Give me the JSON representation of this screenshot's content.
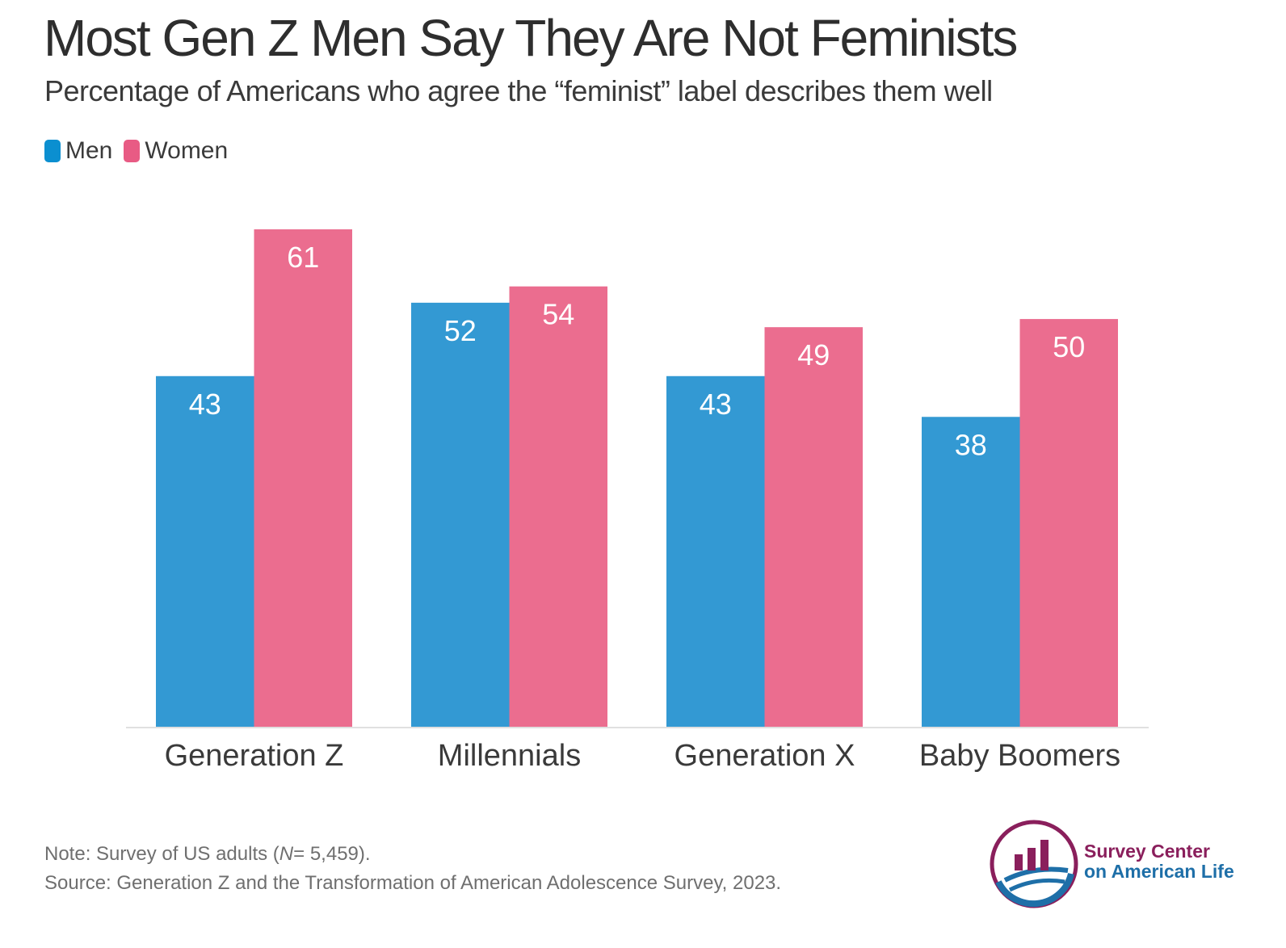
{
  "chart_data": {
    "type": "bar",
    "title": "Most Gen Z Men Say They Are Not Feminists",
    "subtitle": "Percentage of Americans who agree the “feminist” label describes them well",
    "categories": [
      "Generation Z",
      "Millennials",
      "Generation X",
      "Baby Boomers"
    ],
    "series": [
      {
        "name": "Men",
        "color": "#3399d3",
        "values": [
          43,
          52,
          43,
          38
        ]
      },
      {
        "name": "Women",
        "color": "#eb6d8f",
        "values": [
          61,
          54,
          49,
          50
        ]
      }
    ],
    "ylim": [
      0,
      61
    ],
    "legend_position": "top-left",
    "grid": false
  },
  "legend": {
    "men_label": "Men",
    "women_label": "Women"
  },
  "footer": {
    "note_prefix": "Note: Survey of US adults (",
    "note_n": "N",
    "note_suffix": "= 5,459).",
    "source": "Source: Generation Z and the Transformation of American Adolescence Survey, 2023."
  },
  "logo": {
    "line1": "Survey Center",
    "line2": "on American Life",
    "icon": "bar-chart-globe-logo-icon"
  }
}
